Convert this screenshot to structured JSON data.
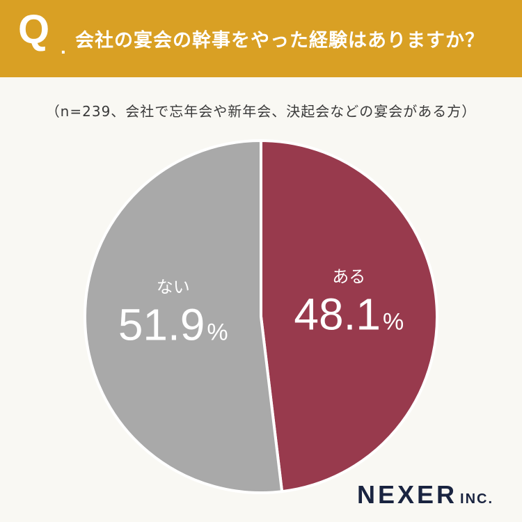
{
  "header": {
    "q_mark": "Q",
    "q_dot": ".",
    "question": "会社の宴会の幹事をやった経験はありますか？"
  },
  "subtitle": "（n=239、会社で忘年会や新年会、決起会などの宴会がある方）",
  "chart_data": {
    "type": "pie",
    "title": "会社の宴会の幹事をやった経験はありますか？",
    "subtitle": "（n=239、会社で忘年会や新年会、決起会などの宴会がある方）",
    "slices": [
      {
        "label": "ある",
        "value": 48.1,
        "display": "48.1",
        "unit": "%",
        "color": "#983a4d"
      },
      {
        "label": "ない",
        "value": 51.9,
        "display": "51.9",
        "unit": "%",
        "color": "#a9a9a9"
      }
    ]
  },
  "logo": {
    "main": "NEXER",
    "sub": "INC."
  },
  "colors": {
    "header_bg": "#d9a024",
    "page_bg": "#f9f8f3",
    "label_text": "#ffffff"
  }
}
